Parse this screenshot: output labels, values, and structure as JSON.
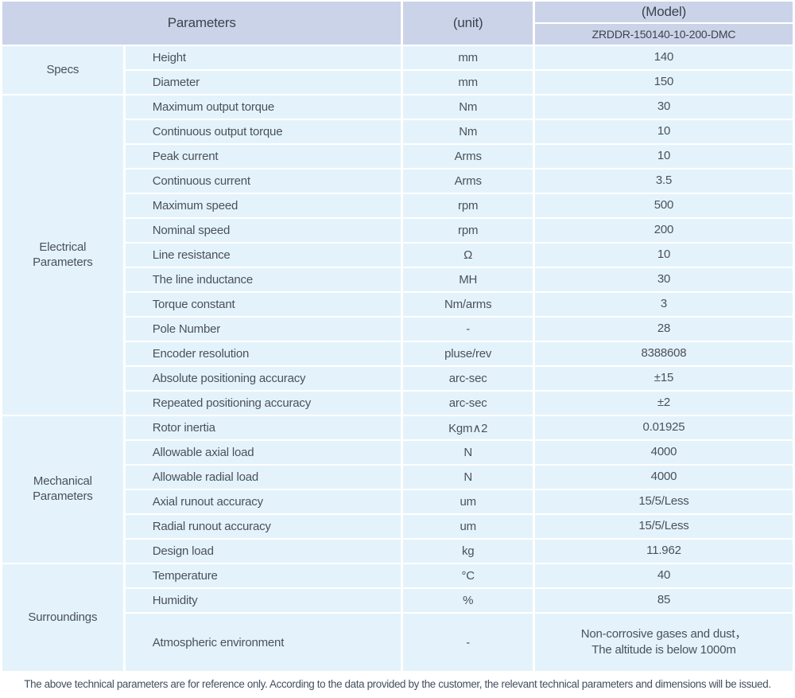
{
  "header": {
    "parameters_label": "Parameters",
    "unit_label": "(unit)",
    "model_label": "(Model)",
    "model_value": "ZRDDR-150140-10-200-DMC"
  },
  "sections": [
    {
      "id": "specs",
      "group": "Specs",
      "rows": [
        {
          "name": "Height",
          "unit": "mm",
          "value": "140"
        },
        {
          "name": "Diameter",
          "unit": "mm",
          "value": "150"
        }
      ]
    },
    {
      "id": "electrical-parameters",
      "group": "Electrical Parameters",
      "rows": [
        {
          "name": "Maximum output torque",
          "unit": "Nm",
          "value": "30"
        },
        {
          "name": "Continuous output torque",
          "unit": "Nm",
          "value": "10"
        },
        {
          "name": "Peak current",
          "unit": "Arms",
          "value": "10"
        },
        {
          "name": "Continuous current",
          "unit": "Arms",
          "value": "3.5"
        },
        {
          "name": "Maximum speed",
          "unit": "rpm",
          "value": "500"
        },
        {
          "name": "Nominal speed",
          "unit": "rpm",
          "value": "200"
        },
        {
          "name": "Line resistance",
          "unit": "Ω",
          "value": "10"
        },
        {
          "name": "The line inductance",
          "unit": "MH",
          "value": "30"
        },
        {
          "name": "Torque constant",
          "unit": "Nm/arms",
          "value": "3"
        },
        {
          "name": "Pole Number",
          "unit": "-",
          "value": "28"
        },
        {
          "name": "Encoder resolution",
          "unit": "pluse/rev",
          "value": "8388608"
        },
        {
          "name": "Absolute positioning accuracy",
          "unit": "arc-sec",
          "value": "±15"
        },
        {
          "name": "Repeated positioning accuracy",
          "unit": "arc-sec",
          "value": "±2"
        }
      ]
    },
    {
      "id": "mechanical-parameters",
      "group": "Mechanical Parameters",
      "rows": [
        {
          "name": "Rotor inertia",
          "unit": "Kgm∧2",
          "value": "0.01925"
        },
        {
          "name": "Allowable axial load",
          "unit": "N",
          "value": "4000"
        },
        {
          "name": "Allowable radial load",
          "unit": "N",
          "value": "4000"
        },
        {
          "name": "Axial runout accuracy",
          "unit": "um",
          "value": "15/5/Less"
        },
        {
          "name": "Radial runout accuracy",
          "unit": "um",
          "value": "15/5/Less"
        },
        {
          "name": "Design load",
          "unit": "kg",
          "value": "11.962"
        }
      ]
    },
    {
      "id": "surroundings",
      "group": "Surroundings",
      "rows": [
        {
          "name": "Temperature",
          "unit": "°C",
          "value": "40"
        },
        {
          "name": "Humidity",
          "unit": "%",
          "value": "85"
        },
        {
          "name": "Atmospheric environment",
          "unit": "-",
          "value": "Non-corrosive gases and dust，\nThe altitude is below 1000m"
        }
      ]
    }
  ],
  "footer": {
    "note": "The above technical parameters are for reference only. According to the data provided by the customer, the relevant technical parameters and dimensions will be issued."
  },
  "colors": {
    "header_bg": "#cbd3e8",
    "header_text": "#3c434e",
    "body_bg": "#e4f3fb",
    "body_text": "#4a515b",
    "footer_text": "#43505e",
    "grid_white": "#ffffff"
  }
}
